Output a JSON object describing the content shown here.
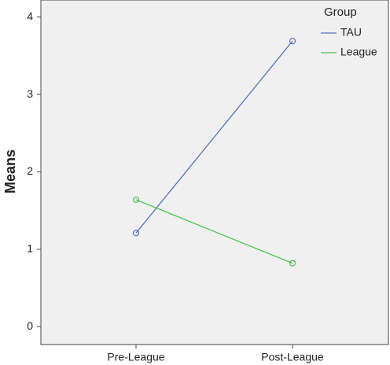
{
  "chart_data": {
    "type": "line",
    "y_label": "Means",
    "legend_title": "Group",
    "categories": [
      "Pre-League",
      "Post-League"
    ],
    "series": [
      {
        "name": "TAU",
        "color": "#5a6fbf",
        "values": [
          1.21,
          3.69
        ]
      },
      {
        "name": "League",
        "color": "#4cc44c",
        "values": [
          1.64,
          0.82
        ]
      }
    ],
    "ylim": [
      -0.23,
      4.22
    ],
    "yticks": [
      0,
      1,
      2,
      3,
      4
    ],
    "legend": "top-right"
  }
}
